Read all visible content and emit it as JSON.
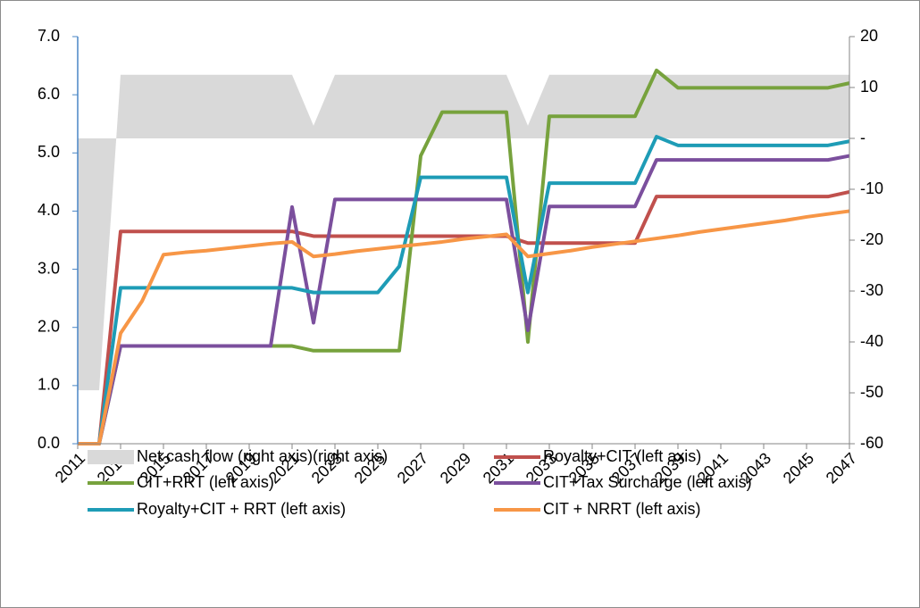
{
  "chart_data": {
    "type": "line",
    "x": [
      2011,
      2012,
      2013,
      2014,
      2015,
      2016,
      2017,
      2018,
      2019,
      2020,
      2021,
      2022,
      2023,
      2024,
      2025,
      2026,
      2027,
      2028,
      2029,
      2030,
      2031,
      2032,
      2033,
      2034,
      2035,
      2036,
      2037,
      2038,
      2039,
      2040,
      2041,
      2042,
      2043,
      2044,
      2045,
      2046,
      2047
    ],
    "xlim": [
      2011,
      2047
    ],
    "xticks": [
      2011,
      2013,
      2015,
      2017,
      2019,
      2021,
      2023,
      2025,
      2027,
      2029,
      2031,
      2033,
      2035,
      2037,
      2039,
      2041,
      2043,
      2045,
      2047
    ],
    "ylim": [
      0,
      7
    ],
    "yticks": [
      {
        "value": 0,
        "label": "0.0"
      },
      {
        "value": 1,
        "label": "1.0"
      },
      {
        "value": 2,
        "label": "2.0"
      },
      {
        "value": 3,
        "label": "3.0"
      },
      {
        "value": 4,
        "label": "4.0"
      },
      {
        "value": 5,
        "label": "5.0"
      },
      {
        "value": 6,
        "label": "6.0"
      },
      {
        "value": 7,
        "label": "7.0"
      }
    ],
    "y2lim": [
      -60,
      20
    ],
    "y2ticks": [
      -60,
      -50,
      -40,
      -30,
      -20,
      -10,
      {
        "value": 0,
        "label": "-"
      },
      10,
      20
    ],
    "grid": false,
    "legend": "bottom",
    "series": [
      {
        "name": "Net cash flow (right axis)(right axis)",
        "type": "area",
        "axis": "y2",
        "color": "#d9d9d9",
        "values": [
          -49.5,
          -49.5,
          12.5,
          12.5,
          12.5,
          12.5,
          12.5,
          12.5,
          12.5,
          12.5,
          12.5,
          2.5,
          12.5,
          12.5,
          12.5,
          12.5,
          12.5,
          12.5,
          12.5,
          12.5,
          12.5,
          2.5,
          12.5,
          12.5,
          12.5,
          12.5,
          12.5,
          12.5,
          12.5,
          12.5,
          12.5,
          12.5,
          12.5,
          12.5,
          12.5,
          12.5,
          12.5
        ]
      },
      {
        "name": "Royalty+CIT (left axis)",
        "color": "#c0504d",
        "values": [
          0,
          0,
          3.65,
          3.65,
          3.65,
          3.65,
          3.65,
          3.65,
          3.65,
          3.65,
          3.65,
          3.57,
          3.57,
          3.57,
          3.57,
          3.57,
          3.57,
          3.57,
          3.57,
          3.57,
          3.57,
          3.45,
          3.45,
          3.45,
          3.45,
          3.45,
          3.45,
          4.25,
          4.25,
          4.25,
          4.25,
          4.25,
          4.25,
          4.25,
          4.25,
          4.25,
          4.33
        ]
      },
      {
        "name": "CIT+RRT (left axis)",
        "color": "#77a23d",
        "values": [
          0,
          0,
          1.68,
          1.68,
          1.68,
          1.68,
          1.68,
          1.68,
          1.68,
          1.68,
          1.68,
          1.6,
          1.6,
          1.6,
          1.6,
          1.6,
          4.95,
          5.7,
          5.7,
          5.7,
          5.7,
          1.75,
          5.63,
          5.63,
          5.63,
          5.63,
          5.63,
          6.42,
          6.12,
          6.12,
          6.12,
          6.12,
          6.12,
          6.12,
          6.12,
          6.12,
          6.2
        ]
      },
      {
        "name": "CIT+Tax Surcharge (left axis)",
        "color": "#7b4f9d",
        "values": [
          0,
          0,
          1.68,
          1.68,
          1.68,
          1.68,
          1.68,
          1.68,
          1.68,
          1.68,
          4.07,
          2.08,
          4.2,
          4.2,
          4.2,
          4.2,
          4.2,
          4.2,
          4.2,
          4.2,
          4.2,
          1.95,
          4.08,
          4.08,
          4.08,
          4.08,
          4.08,
          4.88,
          4.88,
          4.88,
          4.88,
          4.88,
          4.88,
          4.88,
          4.88,
          4.88,
          4.95
        ]
      },
      {
        "name": "Royalty+CIT + RRT (left axis)",
        "color": "#1e9cb6",
        "values": [
          0,
          0,
          2.68,
          2.68,
          2.68,
          2.68,
          2.68,
          2.68,
          2.68,
          2.68,
          2.68,
          2.6,
          2.6,
          2.6,
          2.6,
          3.05,
          4.58,
          4.58,
          4.58,
          4.58,
          4.58,
          2.6,
          4.48,
          4.48,
          4.48,
          4.48,
          4.48,
          5.28,
          5.13,
          5.13,
          5.13,
          5.13,
          5.13,
          5.13,
          5.13,
          5.13,
          5.2
        ]
      },
      {
        "name": "CIT + NRRT (left axis)",
        "color": "#f79646",
        "values": [
          0,
          0,
          1.9,
          2.45,
          3.25,
          3.29,
          3.32,
          3.36,
          3.4,
          3.44,
          3.47,
          3.22,
          3.26,
          3.31,
          3.35,
          3.39,
          3.43,
          3.47,
          3.52,
          3.56,
          3.6,
          3.22,
          3.27,
          3.32,
          3.38,
          3.43,
          3.48,
          3.53,
          3.58,
          3.64,
          3.69,
          3.74,
          3.79,
          3.84,
          3.9,
          3.95,
          4.0
        ]
      }
    ]
  }
}
